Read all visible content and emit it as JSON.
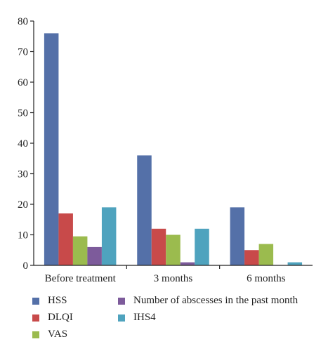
{
  "chart_data": {
    "type": "bar",
    "title": "",
    "xlabel": "",
    "ylabel": "",
    "categories": [
      "Before treatment",
      "3 months",
      "6 months"
    ],
    "ylim": [
      0,
      80
    ],
    "yticks": [
      0,
      10,
      20,
      30,
      40,
      50,
      60,
      70,
      80
    ],
    "grid": false,
    "legend_position": "bottom",
    "series": [
      {
        "name": "HSS",
        "color": "#5470a8",
        "values": [
          76,
          36,
          19
        ]
      },
      {
        "name": "DLQI",
        "color": "#c84a4a",
        "values": [
          17,
          12,
          5
        ]
      },
      {
        "name": "VAS",
        "color": "#9bbb4e",
        "values": [
          9.5,
          10,
          7
        ]
      },
      {
        "name": "Number of abscesses in the past month",
        "color": "#7d5b9b",
        "values": [
          6,
          1,
          0
        ]
      },
      {
        "name": "IHS4",
        "color": "#4fa3be",
        "values": [
          19,
          12,
          1
        ]
      }
    ]
  }
}
